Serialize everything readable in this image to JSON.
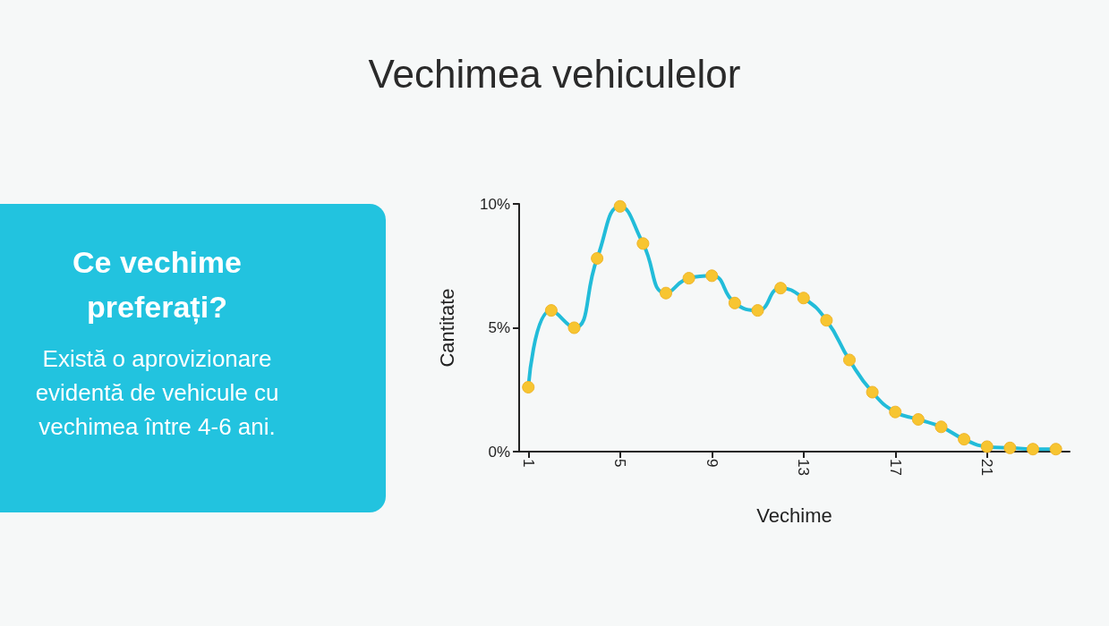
{
  "chart_data": [
    {
      "type": "other",
      "title": "Ce vechime preferați?",
      "annotations": [
        "Există o aprovizionare evidentă de vehicule cu vechimea între 4-6 ani."
      ]
    },
    {
      "type": "line",
      "title": "Vechimea vehiculelor",
      "xlabel": "Vechime",
      "ylabel": "Cantitate",
      "x": [
        1,
        2,
        3,
        4,
        5,
        6,
        7,
        8,
        9,
        10,
        11,
        12,
        13,
        14,
        15,
        16,
        17,
        18,
        19,
        20,
        21,
        22,
        23,
        24
      ],
      "series": [
        {
          "color": "#22bcd9",
          "values": [
            2.6,
            5.7,
            5.0,
            7.8,
            9.9,
            8.4,
            6.4,
            7.0,
            7.1,
            6.0,
            5.7,
            6.6,
            6.2,
            5.3,
            3.7,
            2.4,
            1.6,
            1.3,
            1.0,
            0.5,
            0.2,
            0.15,
            0.1,
            0.1
          ]
        }
      ],
      "xlim": [
        0.6,
        24.6
      ],
      "xticks": [
        1,
        5,
        9,
        13,
        17,
        21
      ],
      "ylim": [
        0,
        10
      ],
      "yticks": [
        {
          "value": 0,
          "label": "0%"
        },
        {
          "value": 5,
          "label": "5%"
        },
        {
          "value": 10,
          "label": "10%"
        }
      ],
      "grid": false,
      "marker": "circle",
      "line_style": "solid"
    }
  ]
}
